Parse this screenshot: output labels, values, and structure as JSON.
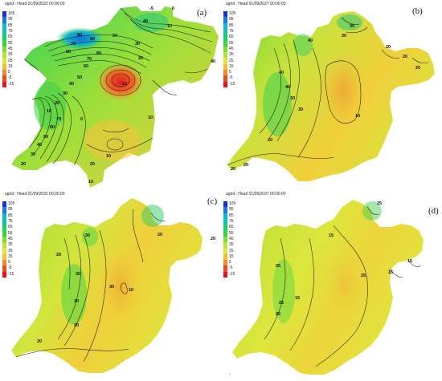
{
  "legend": {
    "values": [
      "105",
      "95",
      "85",
      "75",
      "65",
      "55",
      "45",
      "35",
      "25",
      "15",
      "5",
      "-5",
      "-15"
    ],
    "colors": [
      "#1b2fd6",
      "#1a78e0",
      "#11b2dc",
      "#0fc7a6",
      "#19cf66",
      "#35d63d",
      "#7bdc33",
      "#b9e33b",
      "#e4e23c",
      "#f2bd35",
      "#f08a2c",
      "#ea4a22",
      "#e0141b"
    ]
  },
  "panels": [
    {
      "title": "ugrid : Head 01/09/2022 00:00:00",
      "label": "(a)",
      "contour_labels": [
        "90",
        "80",
        "70",
        "60",
        "50",
        "40",
        "30",
        "20",
        "10",
        "0",
        "-5",
        "80",
        "70",
        "60",
        "50",
        "40",
        "30",
        "20",
        "10",
        "0",
        "-10",
        "70",
        "60",
        "50",
        "40",
        "30",
        "20",
        "10",
        "20",
        "10",
        "10",
        "40"
      ]
    },
    {
      "title": "ugrid : Head 01/09/2027 00:00:00",
      "label": "(b)",
      "contour_labels": [
        "40",
        "30",
        "30",
        "20",
        "40",
        "30",
        "20",
        "10",
        "40",
        "30",
        "20",
        "20",
        "20",
        "20"
      ]
    },
    {
      "title": "ugrid : Head 01/09/2032 00:00:00",
      "label": "(c)",
      "contour_labels": [
        "30",
        "20",
        "20",
        "30",
        "30",
        "20",
        "30",
        "20",
        "10",
        "20"
      ]
    },
    {
      "title": "ugrid : Head 01/09/2037 00:00:00",
      "label": "(d)",
      "contour_labels": [
        "25",
        "25",
        "15",
        "25",
        "25",
        "15",
        "15",
        "25",
        "15"
      ]
    }
  ],
  "footer_mark": "\""
}
